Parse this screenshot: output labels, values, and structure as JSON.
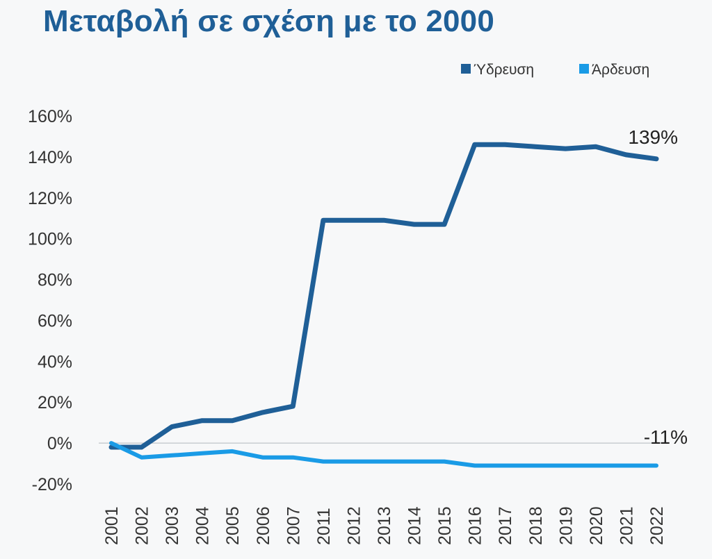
{
  "chart_data": {
    "type": "line",
    "title": "Μεταβολή σε σχέση με το 2000",
    "categories": [
      "2001",
      "2002",
      "2003",
      "2004",
      "2005",
      "2006",
      "2007",
      "2011",
      "2012",
      "2013",
      "2014",
      "2015",
      "2016",
      "2017",
      "2018",
      "2019",
      "2020",
      "2021",
      "2022"
    ],
    "series": [
      {
        "name": "Ύδρευση",
        "color": "#1f5f97",
        "values": [
          -2,
          -2,
          8,
          11,
          11,
          15,
          18,
          109,
          109,
          109,
          107,
          107,
          146,
          146,
          145,
          144,
          145,
          141,
          139
        ],
        "end_label": "139%"
      },
      {
        "name": "Άρδευση",
        "color": "#1a9be6",
        "values": [
          0,
          -7,
          -6,
          -5,
          -4,
          -7,
          -7,
          -9,
          -9,
          -9,
          -9,
          -9,
          -11,
          -11,
          -11,
          -11,
          -11,
          -11,
          -11
        ],
        "end_label": "-11%"
      }
    ],
    "y_ticks": [
      "160%",
      "140%",
      "120%",
      "100%",
      "80%",
      "60%",
      "40%",
      "20%",
      "0%",
      "-20%"
    ],
    "ylim": [
      -20,
      160
    ],
    "legend_position": "top-right",
    "grid": false
  }
}
